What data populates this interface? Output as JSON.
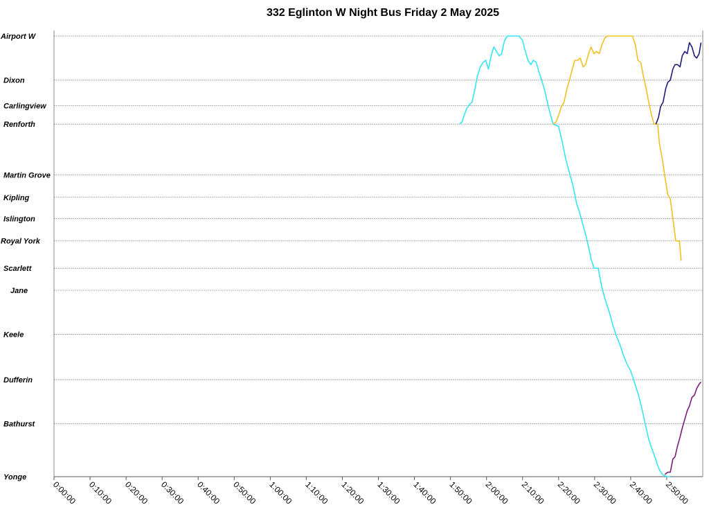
{
  "chart_data": {
    "type": "line",
    "title": "332 Eglinton W Night Bus Friday 2 May 2025",
    "xlabel": "",
    "ylabel": "",
    "x_ticks": [
      "0:00:00",
      "0:10:00",
      "0:20:00",
      "0:30:00",
      "0:40:00",
      "0:50:00",
      "1:00:00",
      "1:10:00",
      "1:20:00",
      "1:30:00",
      "1:40:00",
      "1:50:00",
      "2:00:00",
      "2:10:00",
      "2:20:00",
      "2:30:00",
      "2:40:00",
      "2:50:00"
    ],
    "xlim_minutes": [
      0,
      180
    ],
    "stops": [
      {
        "name": "Airport W",
        "pos": 0.0
      },
      {
        "name": "Dixon",
        "pos": 0.1
      },
      {
        "name": "Carlingview",
        "pos": 0.158
      },
      {
        "name": "Renforth",
        "pos": 0.2
      },
      {
        "name": "Martin Grove",
        "pos": 0.315
      },
      {
        "name": "Kipling",
        "pos": 0.366
      },
      {
        "name": "Islington",
        "pos": 0.414
      },
      {
        "name": "Royal York",
        "pos": 0.465
      },
      {
        "name": "Scarlett",
        "pos": 0.527
      },
      {
        "name": "Jane",
        "pos": 0.577
      },
      {
        "name": "Keele",
        "pos": 0.677
      },
      {
        "name": "Dufferin",
        "pos": 0.78
      },
      {
        "name": "Bathurst",
        "pos": 0.88
      },
      {
        "name": "Yonge",
        "pos": 1.0
      }
    ],
    "grid": true,
    "series": [
      {
        "color": "#33e6f0",
        "points": [
          [
            112.5,
            0.2
          ],
          [
            113.2,
            0.195
          ],
          [
            113.8,
            0.18
          ],
          [
            114.5,
            0.165
          ],
          [
            115.3,
            0.155
          ],
          [
            116.0,
            0.15
          ],
          [
            116.8,
            0.12
          ],
          [
            117.5,
            0.09
          ],
          [
            118.3,
            0.07
          ],
          [
            119.0,
            0.06
          ],
          [
            119.8,
            0.055
          ],
          [
            120.5,
            0.075
          ],
          [
            121.3,
            0.045
          ],
          [
            122.0,
            0.025
          ],
          [
            122.8,
            0.035
          ],
          [
            123.5,
            0.045
          ],
          [
            124.2,
            0.04
          ],
          [
            125.0,
            0.01
          ],
          [
            125.8,
            0.0
          ],
          [
            127.5,
            0.0
          ],
          [
            129.0,
            0.0
          ],
          [
            130.0,
            0.01
          ],
          [
            130.8,
            0.035
          ],
          [
            131.5,
            0.055
          ],
          [
            132.3,
            0.065
          ],
          [
            133.0,
            0.055
          ],
          [
            133.8,
            0.06
          ],
          [
            134.5,
            0.08
          ],
          [
            135.3,
            0.1
          ],
          [
            136.2,
            0.125
          ],
          [
            137.0,
            0.155
          ],
          [
            137.8,
            0.18
          ],
          [
            138.5,
            0.2
          ],
          [
            140.0,
            0.205
          ],
          [
            141.0,
            0.24
          ],
          [
            142.0,
            0.28
          ],
          [
            143.0,
            0.31
          ],
          [
            144.0,
            0.34
          ],
          [
            145.0,
            0.38
          ],
          [
            145.8,
            0.4
          ],
          [
            146.8,
            0.43
          ],
          [
            147.5,
            0.45
          ],
          [
            148.2,
            0.475
          ],
          [
            149.0,
            0.505
          ],
          [
            149.8,
            0.527
          ],
          [
            151.0,
            0.527
          ],
          [
            152.0,
            0.57
          ],
          [
            153.0,
            0.6
          ],
          [
            154.0,
            0.625
          ],
          [
            155.0,
            0.655
          ],
          [
            156.0,
            0.68
          ],
          [
            157.0,
            0.7
          ],
          [
            158.0,
            0.725
          ],
          [
            159.0,
            0.745
          ],
          [
            160.0,
            0.76
          ],
          [
            161.0,
            0.785
          ],
          [
            162.0,
            0.81
          ],
          [
            162.8,
            0.835
          ],
          [
            163.5,
            0.86
          ],
          [
            164.3,
            0.89
          ],
          [
            165.0,
            0.915
          ],
          [
            165.8,
            0.935
          ],
          [
            166.5,
            0.95
          ],
          [
            167.3,
            0.97
          ],
          [
            168.0,
            0.985
          ],
          [
            168.8,
            0.995
          ],
          [
            170.0,
            1.0
          ],
          [
            171.0,
            1.0
          ]
        ]
      },
      {
        "color": "#f0c020",
        "points": [
          [
            138.5,
            0.2
          ],
          [
            139.3,
            0.195
          ],
          [
            140.0,
            0.18
          ],
          [
            140.8,
            0.16
          ],
          [
            141.5,
            0.15
          ],
          [
            142.3,
            0.12
          ],
          [
            143.0,
            0.1
          ],
          [
            143.8,
            0.075
          ],
          [
            144.5,
            0.055
          ],
          [
            145.3,
            0.055
          ],
          [
            146.0,
            0.05
          ],
          [
            146.8,
            0.07
          ],
          [
            147.5,
            0.065
          ],
          [
            148.3,
            0.04
          ],
          [
            149.0,
            0.025
          ],
          [
            149.8,
            0.04
          ],
          [
            150.5,
            0.035
          ],
          [
            151.3,
            0.04
          ],
          [
            152.0,
            0.02
          ],
          [
            152.8,
            0.005
          ],
          [
            153.5,
            0.0
          ],
          [
            156.0,
            0.0
          ],
          [
            159.0,
            0.0
          ],
          [
            160.5,
            0.0
          ],
          [
            161.3,
            0.02
          ],
          [
            162.0,
            0.055
          ],
          [
            162.8,
            0.06
          ],
          [
            163.5,
            0.09
          ],
          [
            164.3,
            0.12
          ],
          [
            165.0,
            0.15
          ],
          [
            165.8,
            0.18
          ],
          [
            166.5,
            0.2
          ],
          [
            167.5,
            0.2
          ],
          [
            168.0,
            0.245
          ],
          [
            168.8,
            0.28
          ],
          [
            169.5,
            0.32
          ],
          [
            170.3,
            0.36
          ],
          [
            171.0,
            0.37
          ],
          [
            171.8,
            0.42
          ],
          [
            172.5,
            0.465
          ],
          [
            173.5,
            0.465
          ],
          [
            174.0,
            0.51
          ]
        ]
      },
      {
        "color": "#1a1a80",
        "points": [
          [
            167.0,
            0.2
          ],
          [
            167.7,
            0.185
          ],
          [
            168.3,
            0.16
          ],
          [
            169.0,
            0.15
          ],
          [
            169.7,
            0.12
          ],
          [
            170.3,
            0.105
          ],
          [
            171.0,
            0.1
          ],
          [
            171.7,
            0.075
          ],
          [
            172.3,
            0.065
          ],
          [
            173.0,
            0.065
          ],
          [
            173.7,
            0.07
          ],
          [
            174.3,
            0.045
          ],
          [
            175.0,
            0.035
          ],
          [
            175.7,
            0.04
          ],
          [
            176.3,
            0.015
          ],
          [
            177.0,
            0.025
          ],
          [
            177.7,
            0.045
          ],
          [
            178.3,
            0.05
          ],
          [
            179.0,
            0.04
          ],
          [
            179.5,
            0.015
          ]
        ]
      },
      {
        "color": "#7a1a7a",
        "points": [
          [
            169.5,
            0.995
          ],
          [
            170.3,
            0.99
          ],
          [
            171.0,
            0.99
          ],
          [
            171.7,
            0.96
          ],
          [
            172.3,
            0.955
          ],
          [
            173.0,
            0.93
          ],
          [
            173.7,
            0.91
          ],
          [
            174.3,
            0.89
          ],
          [
            175.0,
            0.87
          ],
          [
            175.7,
            0.85
          ],
          [
            176.3,
            0.84
          ],
          [
            177.0,
            0.82
          ],
          [
            177.7,
            0.815
          ],
          [
            178.3,
            0.8
          ],
          [
            179.0,
            0.79
          ],
          [
            179.5,
            0.785
          ]
        ]
      }
    ]
  }
}
